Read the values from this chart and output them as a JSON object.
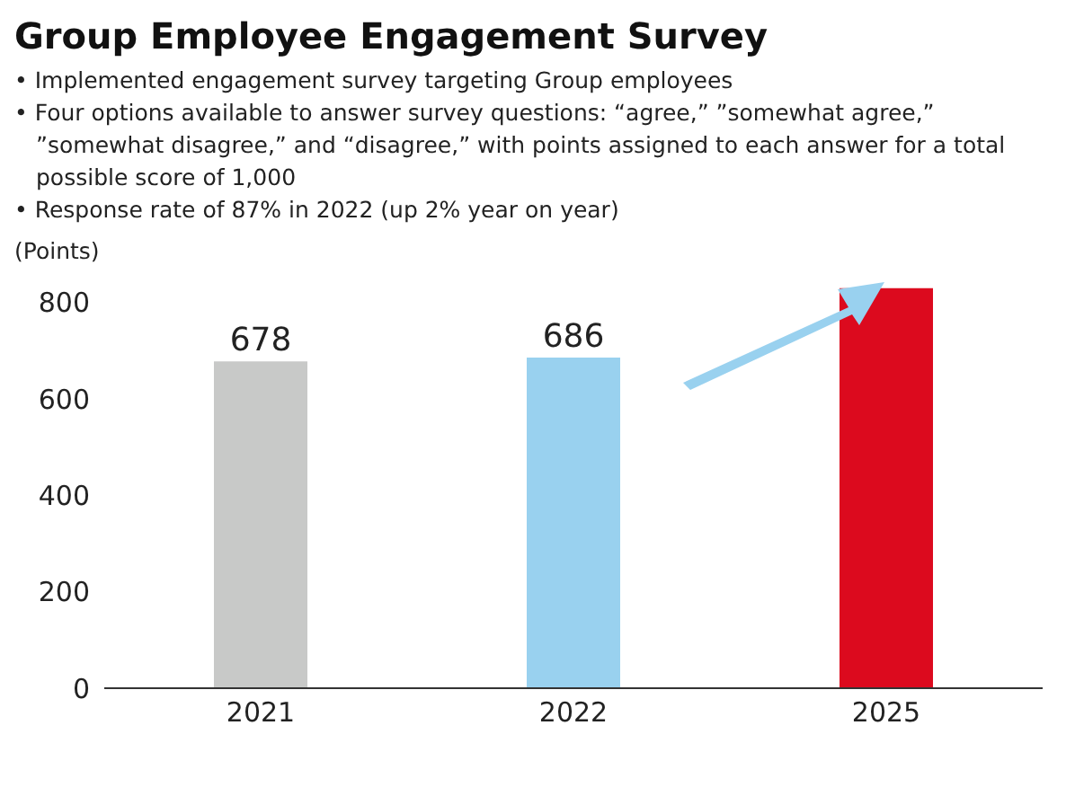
{
  "chart_data": {
    "type": "bar",
    "title": "Group Employee Engagement Survey",
    "annotations": [
      "• Implemented engagement survey targeting Group employees",
      "• Four options available to answer survey questions: “agree,” ”somewhat agree,” ”somewhat disagree,” and “disagree,” with points assigned to each answer for a total possible score of 1,000",
      "• Response rate of 87% in 2022 (up 2% year on year)"
    ],
    "ylabel": "(Points)",
    "categories": [
      "2021",
      "2022",
      "2025"
    ],
    "values": [
      678,
      686,
      830
    ],
    "colors": [
      "#c8c9c8",
      "#99d1ef",
      "#dc0a1e"
    ],
    "value_labels": [
      "678",
      "686",
      null
    ],
    "ylim": [
      0,
      850
    ],
    "yticks": [
      0,
      200,
      400,
      600,
      800
    ]
  }
}
